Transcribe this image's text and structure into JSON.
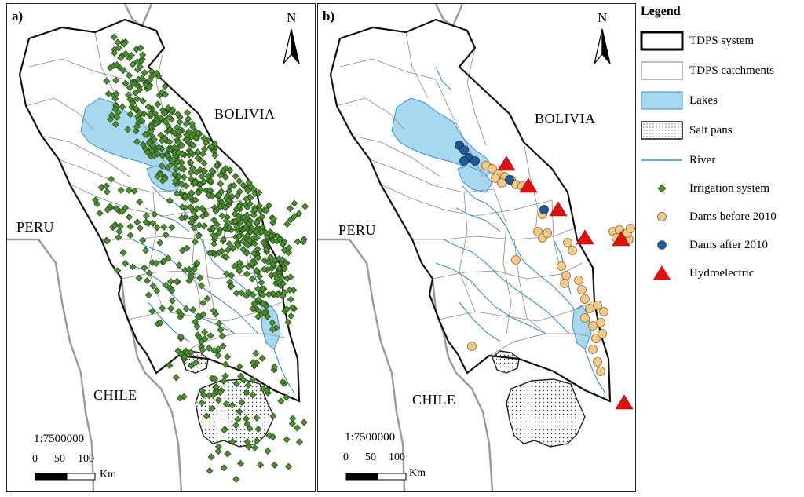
{
  "panels": [
    {
      "id": "a",
      "label": "a)",
      "countries": {
        "bolivia": "BOLIVIA",
        "peru": "PERU",
        "chile": "CHILE"
      },
      "north": "N",
      "scale_text": "1:7500000",
      "scale_ticks": [
        "0",
        "50",
        "100"
      ],
      "scale_unit": "Km"
    },
    {
      "id": "b",
      "label": "b)",
      "countries": {
        "bolivia": "BOLIVIA",
        "peru": "PERU",
        "chile": "CHILE"
      },
      "north": "N",
      "scale_text": "1:7500000",
      "scale_ticks": [
        "0",
        "50",
        "100"
      ],
      "scale_unit": "Km"
    }
  ],
  "legend": {
    "title": "Legend",
    "items": [
      {
        "key": "tdps-system",
        "label": "TDPS system",
        "symbol": "thick-box"
      },
      {
        "key": "tdps-catchments",
        "label": "TDPS catchments",
        "symbol": "thin-box"
      },
      {
        "key": "lakes",
        "label": "Lakes",
        "symbol": "fill-box",
        "color": "#a8d8f0"
      },
      {
        "key": "salt-pans",
        "label": "Salt pans",
        "symbol": "dotted-box"
      },
      {
        "key": "river",
        "label": "River",
        "symbol": "line",
        "color": "#3a8fd0"
      },
      {
        "key": "irrigation-system",
        "label": "Irrigation system",
        "symbol": "diamond",
        "color": "#4e8f32"
      },
      {
        "key": "dams-before-2010",
        "label": "Dams before 2010",
        "symbol": "circle",
        "color": "#f5c98a"
      },
      {
        "key": "dams-after-2010",
        "label": "Dams after 2010",
        "symbol": "circle",
        "color": "#1f5a99"
      },
      {
        "key": "hydroelectric",
        "label": "Hydroelectric",
        "symbol": "triangle",
        "color": "#e01010"
      }
    ]
  },
  "colors": {
    "lake": "#a8d8f0",
    "river": "#3a8fd0",
    "irrigation": "#4e8f32",
    "dam_before": "#f5c98a",
    "dam_after": "#1f5a99",
    "hydro": "#e01010",
    "border": "#9a9a9a"
  }
}
